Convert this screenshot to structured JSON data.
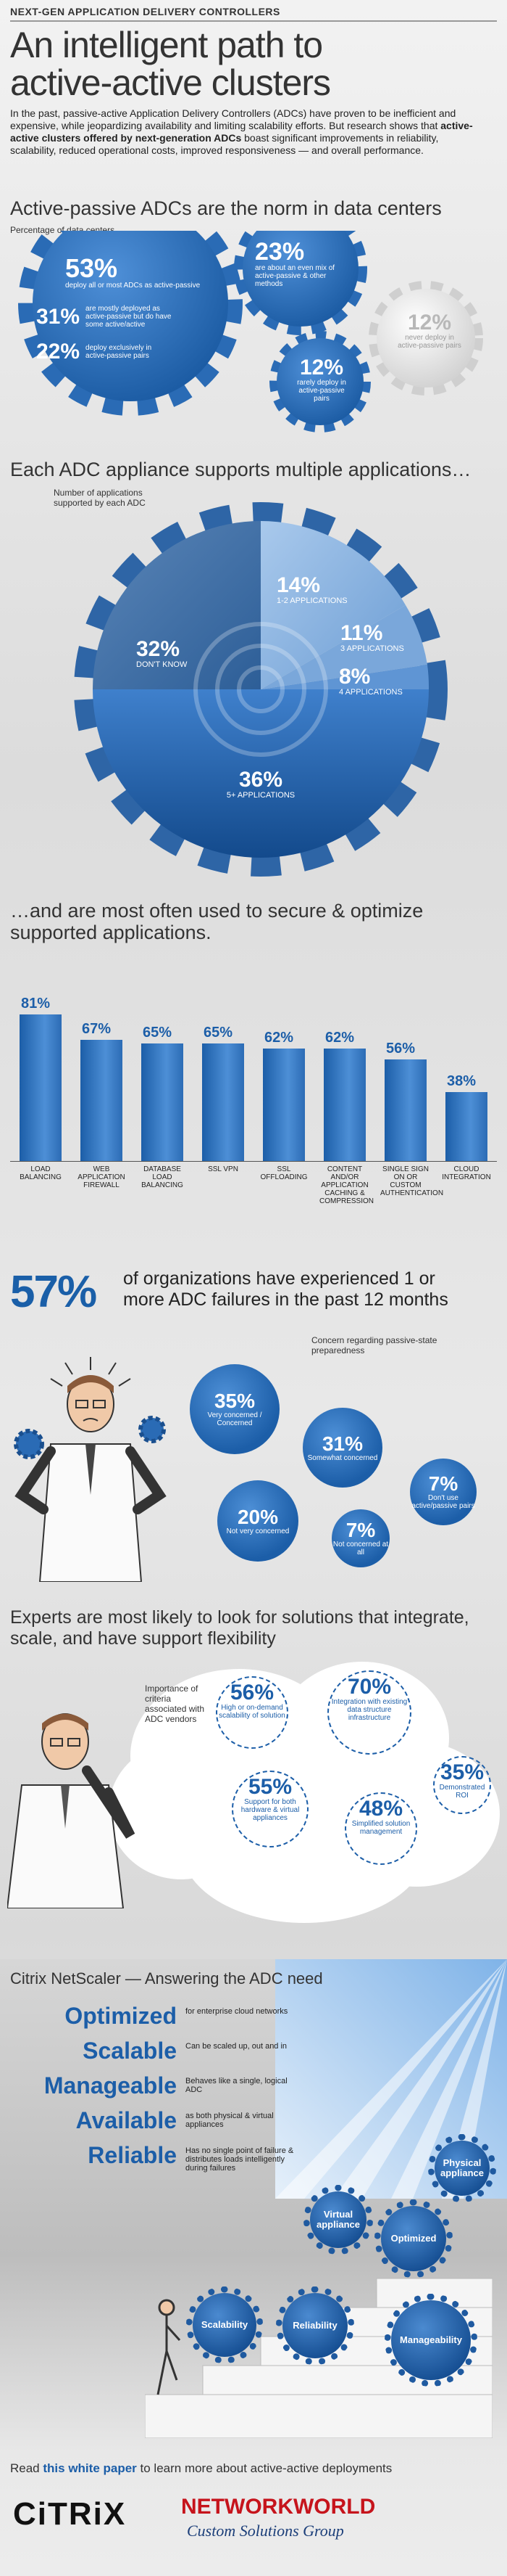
{
  "header": {
    "kicker": "NEXT-GEN APPLICATION DELIVERY CONTROLLERS",
    "title_line1": "An intelligent path to",
    "title_line2": "active-active clusters",
    "intro_part1": "In the past, passive-active Application Delivery Controllers (ADCs) have proven to be inefficient and expensive, while jeopardizing availability and limiting scalability efforts. But research shows that ",
    "intro_bold": "active-active clusters offered by next-generation ADCs",
    "intro_part2": " boast significant improvements in reliability, scalability, reduced operational costs, improved responsiveness — and overall performance."
  },
  "section1": {
    "title": "Active-passive ADCs are the norm in data centers",
    "label": "Percentage of data centers",
    "stats": [
      {
        "value": "53%",
        "text": "deploy all or most ADCs as active-passive"
      },
      {
        "value": "31%",
        "text": "are mostly deployed as active-passive but do have some active/active"
      },
      {
        "value": "22%",
        "text": "deploy exclusively in active-passive pairs"
      },
      {
        "value": "23%",
        "text": "are about an even mix of active-passive & other methods"
      },
      {
        "value": "12%",
        "text": "rarely deploy in active-passive pairs"
      },
      {
        "value": "12%",
        "text": "never deploy in active-passive pairs"
      }
    ]
  },
  "section2": {
    "title": "Each ADC appliance supports multiple applications…",
    "label": "Number of applications supported by each ADC",
    "slices": [
      {
        "value": "14%",
        "text": "1-2 APPLICATIONS"
      },
      {
        "value": "11%",
        "text": "3 APPLICATIONS"
      },
      {
        "value": "8%",
        "text": "4 APPLICATIONS"
      },
      {
        "value": "36%",
        "text": "5+ APPLICATIONS"
      },
      {
        "value": "32%",
        "text": "DON'T KNOW"
      }
    ]
  },
  "section3": {
    "title_line1": "…and are most often used to secure & optimize",
    "title_line2": "supported applications.",
    "chart_data": {
      "type": "bar",
      "categories": [
        "LOAD BALANCING",
        "WEB APPLICATION FIREWALL",
        "DATABASE LOAD BALANCING",
        "SSL VPN",
        "SSL OFFLOADING",
        "CONTENT AND/OR APPLICATION CACHING & COMPRESSION",
        "SINGLE SIGN ON OR CUSTOM AUTHENTICATION",
        "CLOUD INTEGRATION"
      ],
      "values": [
        81,
        67,
        65,
        65,
        62,
        62,
        56,
        38
      ],
      "labels": [
        "81%",
        "67%",
        "65%",
        "65%",
        "62%",
        "62%",
        "56%",
        "38%"
      ],
      "ylim": [
        0,
        100
      ]
    }
  },
  "section4": {
    "headline_value": "57%",
    "headline_text_line1": "of organizations have experienced 1 or",
    "headline_text_line2": "more ADC failures in the past 12 months",
    "label": "Concern regarding passive-state preparedness",
    "stats": [
      {
        "value": "35%",
        "text": "Very concerned / Concerned"
      },
      {
        "value": "31%",
        "text": "Somewhat concerned"
      },
      {
        "value": "20%",
        "text": "Not very concerned"
      },
      {
        "value": "7%",
        "text": "Not concerned at all"
      },
      {
        "value": "7%",
        "text": "Don't use active/passive pairs"
      }
    ]
  },
  "section5": {
    "title_line1": "Experts are most likely to look for solutions that integrate,",
    "title_line2": "scale, and have support flexibility",
    "label": "Importance of criteria associated with ADC vendors",
    "stats": [
      {
        "value": "56%",
        "text": "High or on-demand scalability of solution"
      },
      {
        "value": "70%",
        "text": "Integration with existing data structure infrastructure"
      },
      {
        "value": "55%",
        "text": "Support for both hardware & virtual appliances"
      },
      {
        "value": "48%",
        "text": "Simplified solution management"
      },
      {
        "value": "35%",
        "text": "Demonstrated ROI"
      }
    ]
  },
  "section6": {
    "title": "Citrix NetScaler — Answering the ADC need",
    "features": [
      {
        "word": "Optimized",
        "text": "for enterprise cloud networks"
      },
      {
        "word": "Scalable",
        "text": "Can be scaled up, out and in"
      },
      {
        "word": "Manageable",
        "text": "Behaves like a single, logical ADC"
      },
      {
        "word": "Available",
        "text": "as both physical & virtual appliances"
      },
      {
        "word": "Reliable",
        "text": "Has no single point of failure & distributes loads intelligently during failures"
      }
    ],
    "gears": [
      "Physical appliance",
      "Virtual appliance",
      "Optimized",
      "Scalability",
      "Reliability",
      "Manageability"
    ]
  },
  "footer": {
    "text_before": "Read ",
    "link": "this white paper",
    "text_after": " to learn more about active-active deployments",
    "citrix": "CiTRiX",
    "nw": "NETWORKWORLD",
    "nw_sub": "Custom Solutions Group"
  }
}
